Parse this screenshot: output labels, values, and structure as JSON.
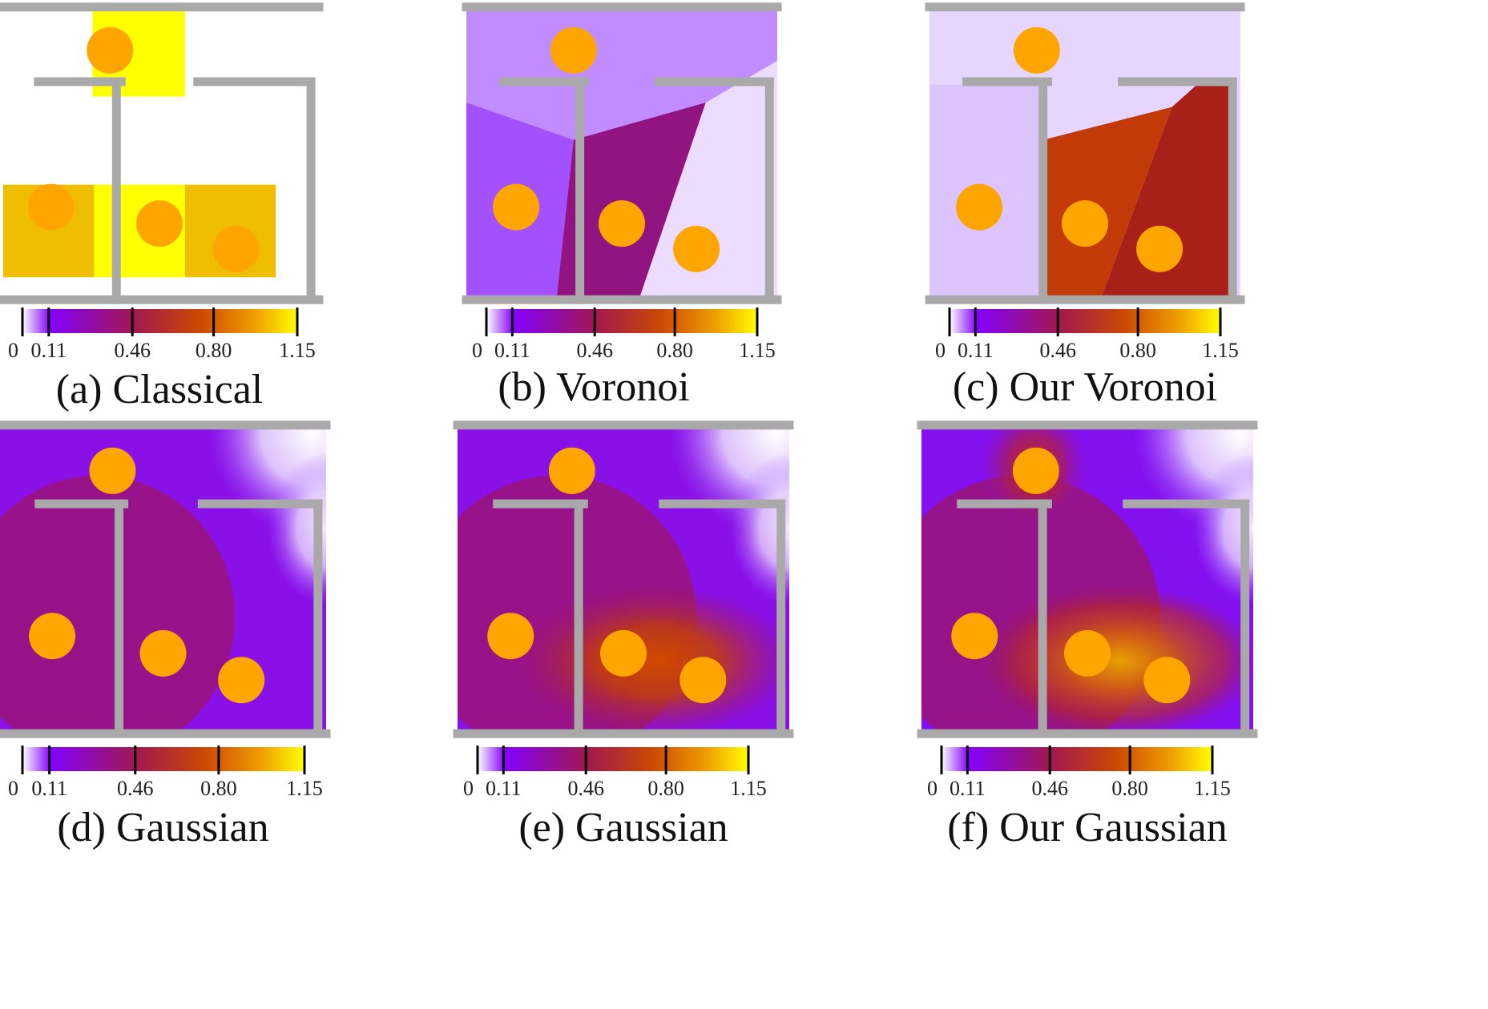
{
  "colormap": {
    "stops": [
      {
        "t": 0.0,
        "color": "#ffffff"
      },
      {
        "t": 0.1,
        "color": "#8400ff"
      },
      {
        "t": 0.4,
        "color": "#a01850"
      },
      {
        "t": 0.65,
        "color": "#cc4a00"
      },
      {
        "t": 0.85,
        "color": "#f0a000"
      },
      {
        "t": 1.0,
        "color": "#ffff00"
      }
    ],
    "ticks": [
      "0",
      "0.11",
      "0.46",
      "0.80",
      "1.15"
    ],
    "tick_values": [
      0,
      0.11,
      0.46,
      0.8,
      1.15
    ],
    "vmax": 1.15
  },
  "colors": {
    "wall": "#a9a9a9",
    "robot": "#ffa500",
    "classical_light": "#ffff00",
    "classical_dark": "#f0be00"
  },
  "panels": [
    {
      "id": "a",
      "caption": "(a) Classical",
      "method": "classical-grid"
    },
    {
      "id": "b",
      "caption": "(b) Voronoi",
      "method": "voronoi"
    },
    {
      "id": "c",
      "caption": "(c) Our Voronoi",
      "method": "our-voronoi"
    },
    {
      "id": "d",
      "caption": "(d) Gaussian",
      "method": "gaussian"
    },
    {
      "id": "e",
      "caption": "(e) Gaussian",
      "method": "gaussian"
    },
    {
      "id": "f",
      "caption": "(f) Our Gaussian",
      "method": "our-gaussian"
    }
  ]
}
